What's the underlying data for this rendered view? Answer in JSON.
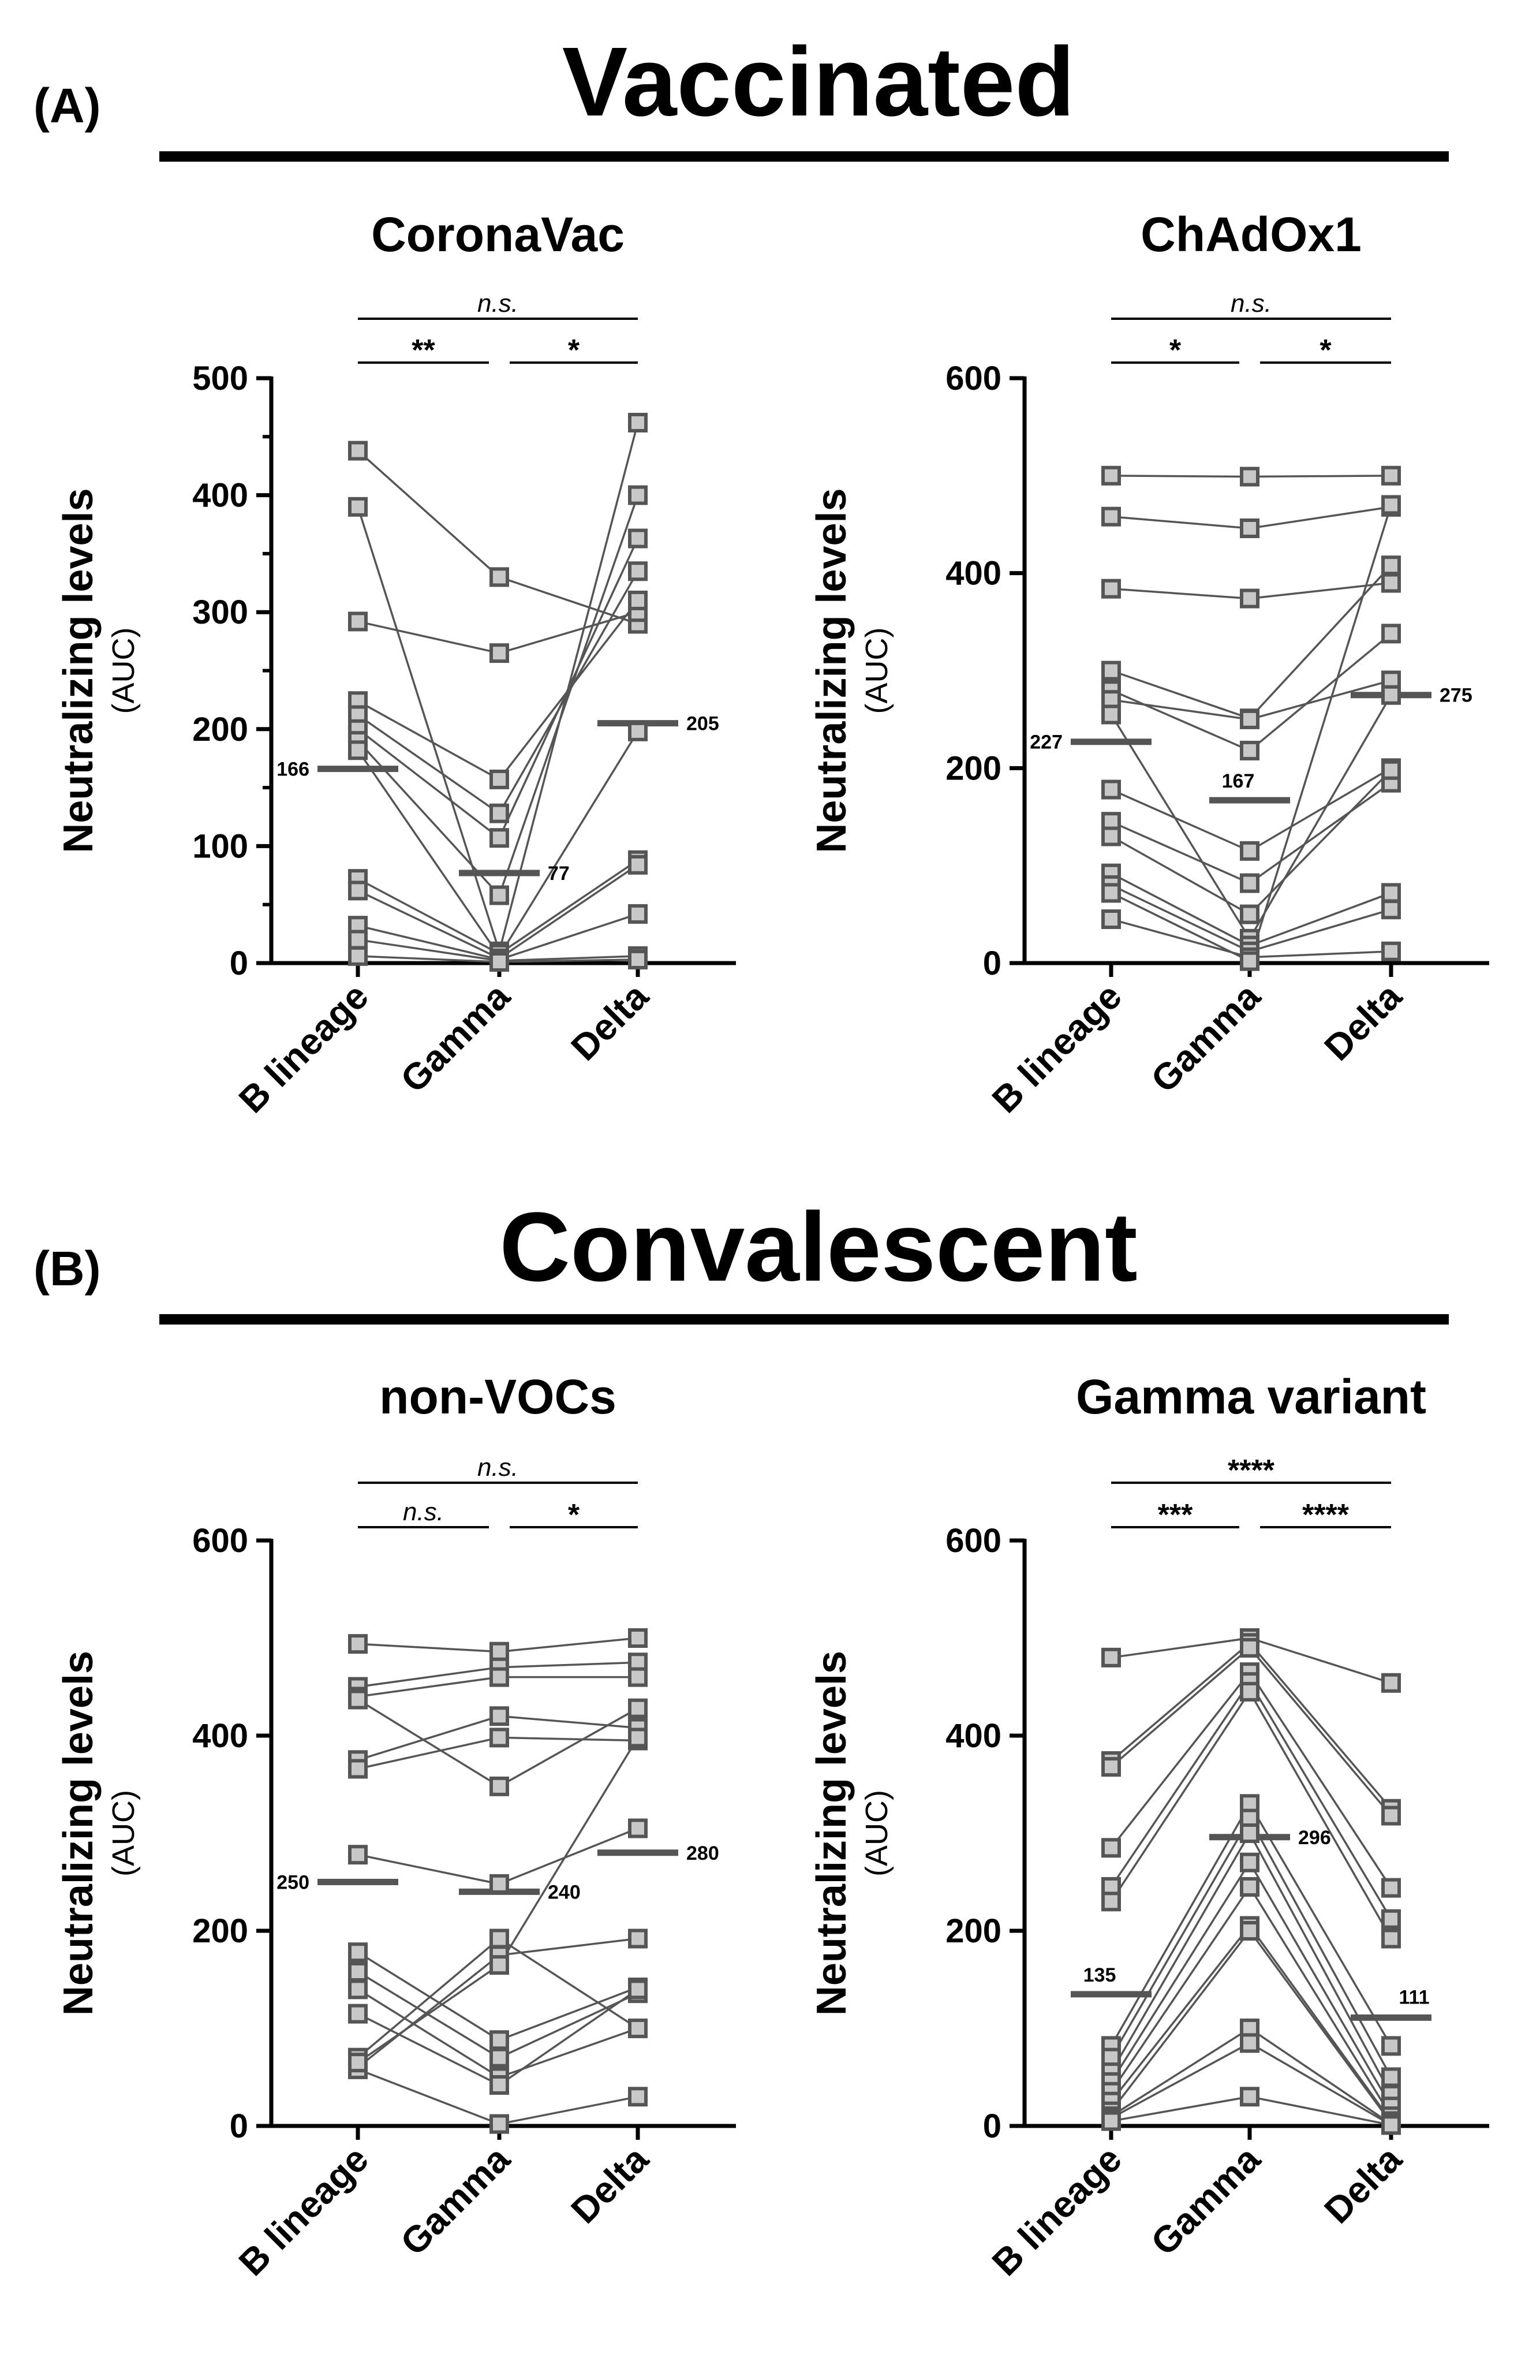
{
  "sections": [
    {
      "tag": "(A)",
      "title": "Vaccinated"
    },
    {
      "tag": "(B)",
      "title": "Convalescent"
    }
  ],
  "chart_data": [
    {
      "type": "scatter",
      "title": "CoronaVac",
      "ylabel": "Neutralizing levels",
      "ylabel_sub": "(AUC)",
      "categories": [
        "B lineage",
        "Gamma",
        "Delta"
      ],
      "ylim": [
        0,
        500
      ],
      "yticks": [
        0,
        100,
        200,
        300,
        400,
        500
      ],
      "minor_ticks": true,
      "medians": [
        166,
        77,
        205
      ],
      "median_labels": [
        "166",
        "77",
        "205"
      ],
      "comparisons": [
        {
          "from": 0,
          "to": 2,
          "label": "n.s."
        },
        {
          "from": 0,
          "to": 1,
          "label": "**"
        },
        {
          "from": 1,
          "to": 2,
          "label": "*"
        }
      ],
      "series": [
        {
          "name": "s1",
          "values": [
            438,
            330,
            290
          ]
        },
        {
          "name": "s2",
          "values": [
            390,
            10,
            462
          ]
        },
        {
          "name": "s3",
          "values": [
            292,
            265,
            300
          ]
        },
        {
          "name": "s4",
          "values": [
            224,
            157,
            310
          ]
        },
        {
          "name": "s5",
          "values": [
            212,
            128,
            335
          ]
        },
        {
          "name": "s6",
          "values": [
            200,
            107,
            363
          ]
        },
        {
          "name": "s7",
          "values": [
            190,
            58,
            400
          ]
        },
        {
          "name": "s8",
          "values": [
            182,
            6,
            198
          ]
        },
        {
          "name": "s9",
          "values": [
            72,
            8,
            88
          ]
        },
        {
          "name": "s10",
          "values": [
            62,
            4,
            84
          ]
        },
        {
          "name": "s11",
          "values": [
            32,
            3,
            42
          ]
        },
        {
          "name": "s12",
          "values": [
            20,
            2,
            6
          ]
        },
        {
          "name": "s13",
          "values": [
            6,
            1,
            3
          ]
        }
      ]
    },
    {
      "type": "scatter",
      "title": "ChAdOx1",
      "ylabel": "Neutralizing levels",
      "ylabel_sub": "(AUC)",
      "categories": [
        "B lineage",
        "Gamma",
        "Delta"
      ],
      "ylim": [
        0,
        600
      ],
      "yticks": [
        0,
        200,
        400,
        600
      ],
      "minor_ticks": false,
      "medians": [
        227,
        167,
        275
      ],
      "median_labels": [
        "227",
        "167",
        "275"
      ],
      "comparisons": [
        {
          "from": 0,
          "to": 2,
          "label": "n.s."
        },
        {
          "from": 0,
          "to": 1,
          "label": "*"
        },
        {
          "from": 1,
          "to": 2,
          "label": "*"
        }
      ],
      "series": [
        {
          "name": "s1",
          "values": [
            500,
            499,
            500
          ]
        },
        {
          "name": "s2",
          "values": [
            458,
            446,
            468
          ]
        },
        {
          "name": "s3",
          "values": [
            384,
            374,
            390
          ]
        },
        {
          "name": "s4",
          "values": [
            300,
            251,
            408
          ]
        },
        {
          "name": "s5",
          "values": [
            280,
            218,
            338
          ]
        },
        {
          "name": "s6",
          "values": [
            270,
            250,
            290
          ]
        },
        {
          "name": "s7",
          "values": [
            255,
            25,
            275
          ]
        },
        {
          "name": "s8",
          "values": [
            178,
            115,
            200
          ]
        },
        {
          "name": "s9",
          "values": [
            145,
            82,
            185
          ]
        },
        {
          "name": "s10",
          "values": [
            130,
            50,
            198
          ]
        },
        {
          "name": "s11",
          "values": [
            92,
            18,
            72
          ]
        },
        {
          "name": "s12",
          "values": [
            80,
            12,
            55
          ]
        },
        {
          "name": "s13",
          "values": [
            45,
            6,
            12
          ]
        },
        {
          "name": "s14",
          "values": [
            72,
            2,
            470
          ]
        }
      ]
    },
    {
      "type": "scatter",
      "title": "non-VOCs",
      "ylabel": "Neutralizing levels",
      "ylabel_sub": "(AUC)",
      "categories": [
        "B lineage",
        "Gamma",
        "Delta"
      ],
      "ylim": [
        0,
        600
      ],
      "yticks": [
        0,
        200,
        400,
        600
      ],
      "minor_ticks": false,
      "medians": [
        250,
        240,
        280
      ],
      "median_labels": [
        "250",
        "240",
        "280"
      ],
      "comparisons": [
        {
          "from": 0,
          "to": 2,
          "label": "n.s."
        },
        {
          "from": 0,
          "to": 1,
          "label": "n.s."
        },
        {
          "from": 1,
          "to": 2,
          "label": "*"
        }
      ],
      "series": [
        {
          "name": "s1",
          "values": [
            494,
            486,
            500
          ]
        },
        {
          "name": "s2",
          "values": [
            450,
            470,
            475
          ]
        },
        {
          "name": "s3",
          "values": [
            440,
            460,
            460
          ]
        },
        {
          "name": "s4",
          "values": [
            437,
            348,
            428
          ]
        },
        {
          "name": "s5",
          "values": [
            375,
            420,
            408
          ]
        },
        {
          "name": "s6",
          "values": [
            366,
            398,
            395
          ]
        },
        {
          "name": "s7",
          "values": [
            278,
            248,
            305
          ]
        },
        {
          "name": "s8",
          "values": [
            178,
            88,
            142
          ]
        },
        {
          "name": "s9",
          "values": [
            158,
            70,
            136
          ]
        },
        {
          "name": "s10",
          "values": [
            140,
            50,
            100
          ]
        },
        {
          "name": "s11",
          "values": [
            115,
            42,
            140
          ]
        },
        {
          "name": "s12",
          "values": [
            70,
            192,
            100
          ]
        },
        {
          "name": "s13",
          "values": [
            60,
            175,
            192
          ]
        },
        {
          "name": "s14",
          "values": [
            58,
            2,
            30
          ]
        },
        {
          "name": "s15",
          "values": [
            65,
            165,
            398
          ]
        }
      ]
    },
    {
      "type": "scatter",
      "title": "Gamma variant",
      "ylabel": "Neutralizing levels",
      "ylabel_sub": "(AUC)",
      "categories": [
        "B lineage",
        "Gamma",
        "Delta"
      ],
      "ylim": [
        0,
        600
      ],
      "yticks": [
        0,
        200,
        400,
        600
      ],
      "minor_ticks": false,
      "medians": [
        135,
        296,
        111
      ],
      "median_labels": [
        "135",
        "296",
        "111"
      ],
      "comparisons": [
        {
          "from": 0,
          "to": 2,
          "label": "****"
        },
        {
          "from": 0,
          "to": 1,
          "label": "***"
        },
        {
          "from": 1,
          "to": 2,
          "label": "****"
        }
      ],
      "series": [
        {
          "name": "s1",
          "values": [
            480,
            500,
            454
          ]
        },
        {
          "name": "s2",
          "values": [
            374,
            495,
            325
          ]
        },
        {
          "name": "s3",
          "values": [
            368,
            490,
            318
          ]
        },
        {
          "name": "s4",
          "values": [
            285,
            465,
            244
          ]
        },
        {
          "name": "s5",
          "values": [
            245,
            455,
            212
          ]
        },
        {
          "name": "s6",
          "values": [
            230,
            445,
            192
          ]
        },
        {
          "name": "s7",
          "values": [
            82,
            330,
            82
          ]
        },
        {
          "name": "s8",
          "values": [
            70,
            315,
            50
          ]
        },
        {
          "name": "s9",
          "values": [
            55,
            300,
            32
          ]
        },
        {
          "name": "s10",
          "values": [
            45,
            270,
            20
          ]
        },
        {
          "name": "s11",
          "values": [
            35,
            245,
            10
          ]
        },
        {
          "name": "s12",
          "values": [
            25,
            205,
            5
          ]
        },
        {
          "name": "s13",
          "values": [
            15,
            200,
            3
          ]
        },
        {
          "name": "s14",
          "values": [
            10,
            100,
            2
          ]
        },
        {
          "name": "s15",
          "values": [
            8,
            85,
            1
          ]
        },
        {
          "name": "s16",
          "values": [
            5,
            30,
            1
          ]
        }
      ]
    }
  ]
}
